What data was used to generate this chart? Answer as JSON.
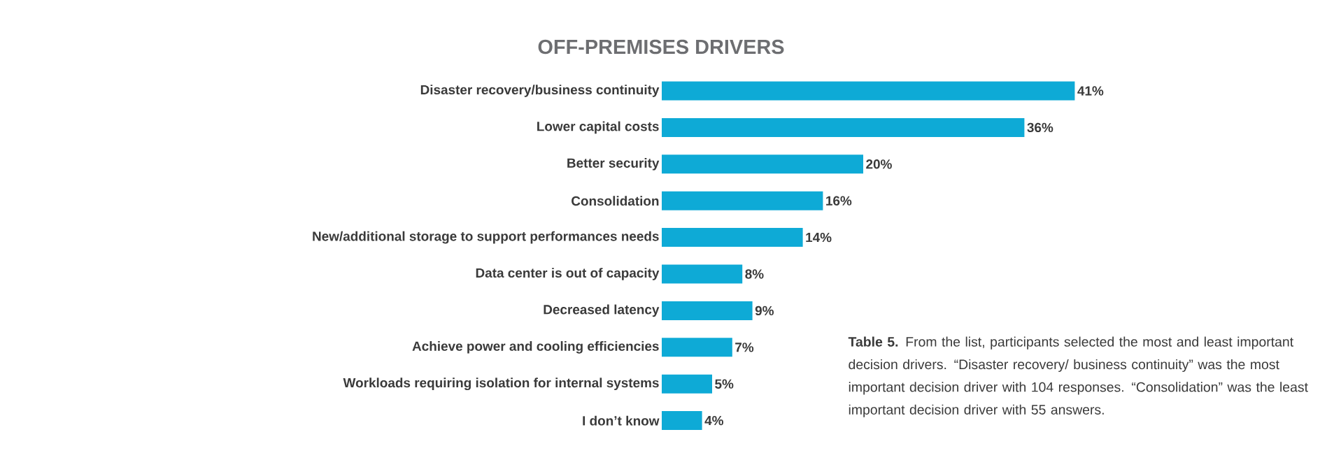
{
  "chart_data": {
    "type": "bar",
    "orientation": "horizontal",
    "title": "OFF-PREMISES DRIVERS",
    "categories": [
      "Disaster recovery/business continuity",
      "Lower capital costs",
      "Better security",
      "Consolidation",
      "New/additional storage to support performances needs",
      "Data center is out of capacity",
      "Decreased latency",
      "Achieve power and cooling efficiencies",
      "Workloads requiring isolation for internal systems",
      "I don’t know"
    ],
    "values": [
      41,
      36,
      20,
      16,
      14,
      8,
      9,
      7,
      5,
      4
    ],
    "value_labels": [
      "41%",
      "36%",
      "20%",
      "16%",
      "14%",
      "8%",
      "9%",
      "7%",
      "5%",
      "4%"
    ],
    "color": "#0eaad6",
    "annotations": [
      "**Table 5.** From the list, participants selected the most and least important decision drivers. “Disaster recovery/ business continuity” was the most important decision driver with 104 responses. “Consolidation” was the least important decision driver with 55 answers."
    ]
  }
}
